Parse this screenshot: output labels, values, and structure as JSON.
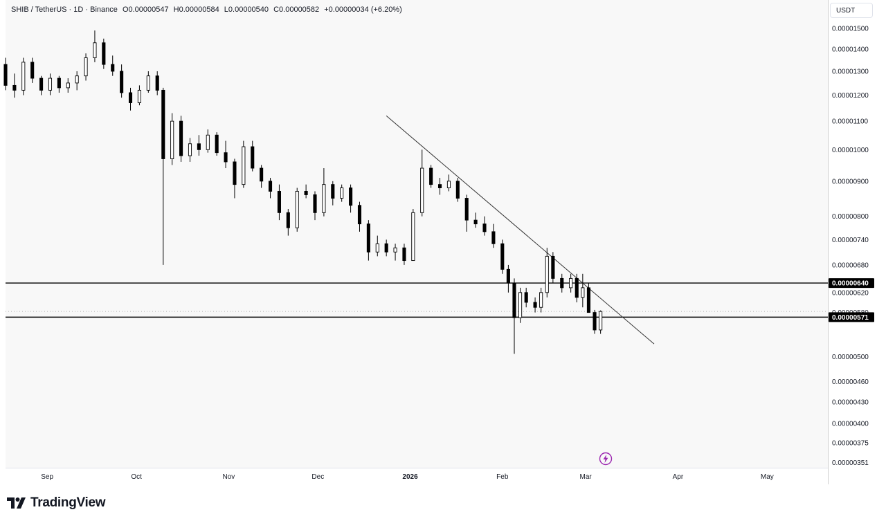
{
  "legend": {
    "symbol": "SHIB / TetherUS · 1D · Binance",
    "open": "O0.00000547",
    "high": "H0.00000584",
    "low": "L0.00000540",
    "close": "C0.00000582",
    "change": "+0.00000034 (+6.20%)"
  },
  "currency": "USDT",
  "brand": "TradingView",
  "colors": {
    "candle": "#000000",
    "line": "#000000",
    "price_label_bg": "#000000",
    "accent": "#9c27b0"
  },
  "icons": {
    "logo": "tradingview-logo-icon",
    "bolt": "lightning-icon"
  },
  "chart_data": {
    "type": "candlestick",
    "log_scale": true,
    "grid": false,
    "y_tick_labels": [
      "0.00001500",
      "0.00001400",
      "0.00001300",
      "0.00001200",
      "0.00001100",
      "0.00001000",
      "0.00000900",
      "0.00000800",
      "0.00000740",
      "0.00000680",
      "0.00000620",
      "0.00000580",
      "0.00000500",
      "0.00000460",
      "0.00000430",
      "0.00000400",
      "0.00000375",
      "0.00000351"
    ],
    "y_ticks": [
      1.5e-05,
      1.4e-05,
      1.3e-05,
      1.2e-05,
      1.1e-05,
      1e-05,
      9e-06,
      8e-06,
      7.4e-06,
      6.8e-06,
      6.2e-06,
      5.8e-06,
      5e-06,
      4.6e-06,
      4.3e-06,
      4e-06,
      3.75e-06,
      3.51e-06
    ],
    "ylim": [
      3.45e-06,
      1.65e-05
    ],
    "x_tick_labels": [
      "Sep",
      "Oct",
      "Nov",
      "Dec",
      "2026",
      "Feb",
      "Mar",
      "Apr",
      "May"
    ],
    "x_ticks": [
      "2025-09-01",
      "2025-10-01",
      "2025-11-01",
      "2025-12-01",
      "2026-01-01",
      "2026-02-01",
      "2026-03-01",
      "2026-04-01",
      "2026-05-01"
    ],
    "x_range": [
      "2025-08-18",
      "2026-05-20"
    ],
    "horizontal_levels": [
      {
        "value": 6.4e-06,
        "label": "0.00000640"
      },
      {
        "value": 5.71e-06,
        "label": "0.00000571"
      }
    ],
    "trendline": {
      "start": [
        "2025-12-24",
        1.12e-05
      ],
      "end": [
        "2026-03-24",
        5.22e-06
      ]
    },
    "dotted_level": 5.82e-06,
    "candles": [
      [
        "2025-08-18",
        1.33e-05,
        1.36e-05,
        1.22e-05,
        1.24e-05
      ],
      [
        "2025-08-21",
        1.24e-05,
        1.29e-05,
        1.19e-05,
        1.22e-05
      ],
      [
        "2025-08-24",
        1.22e-05,
        1.36e-05,
        1.2e-05,
        1.34e-05
      ],
      [
        "2025-08-27",
        1.34e-05,
        1.36e-05,
        1.25e-05,
        1.27e-05
      ],
      [
        "2025-08-30",
        1.27e-05,
        1.28e-05,
        1.2e-05,
        1.22e-05
      ],
      [
        "2025-09-02",
        1.22e-05,
        1.29e-05,
        1.2e-05,
        1.27e-05
      ],
      [
        "2025-09-05",
        1.27e-05,
        1.28e-05,
        1.21e-05,
        1.23e-05
      ],
      [
        "2025-09-08",
        1.23e-05,
        1.27e-05,
        1.21e-05,
        1.25e-05
      ],
      [
        "2025-09-11",
        1.25e-05,
        1.3e-05,
        1.22e-05,
        1.28e-05
      ],
      [
        "2025-09-14",
        1.28e-05,
        1.38e-05,
        1.26e-05,
        1.36e-05
      ],
      [
        "2025-09-17",
        1.36e-05,
        1.49e-05,
        1.34e-05,
        1.43e-05
      ],
      [
        "2025-09-20",
        1.43e-05,
        1.45e-05,
        1.31e-05,
        1.33e-05
      ],
      [
        "2025-09-23",
        1.33e-05,
        1.37e-05,
        1.28e-05,
        1.3e-05
      ],
      [
        "2025-09-26",
        1.3e-05,
        1.33e-05,
        1.19e-05,
        1.21e-05
      ],
      [
        "2025-09-29",
        1.21e-05,
        1.23e-05,
        1.14e-05,
        1.17e-05
      ],
      [
        "2025-10-02",
        1.17e-05,
        1.24e-05,
        1.16e-05,
        1.22e-05
      ],
      [
        "2025-10-05",
        1.22e-05,
        1.3e-05,
        1.21e-05,
        1.28e-05
      ],
      [
        "2025-10-08",
        1.28e-05,
        1.3e-05,
        1.2e-05,
        1.22e-05
      ],
      [
        "2025-10-10",
        1.22e-05,
        1.23e-05,
        6.8e-06,
        9.7e-06
      ],
      [
        "2025-10-13",
        9.7e-06,
        1.13e-05,
        9.5e-06,
        1.1e-05
      ],
      [
        "2025-10-16",
        1.1e-05,
        1.12e-05,
        9.6e-06,
        9.8e-06
      ],
      [
        "2025-10-19",
        9.8e-06,
        1.04e-05,
        9.6e-06,
        1.02e-05
      ],
      [
        "2025-10-22",
        1.02e-05,
        1.05e-05,
        9.8e-06,
        1e-05
      ],
      [
        "2025-10-25",
        1e-05,
        1.07e-05,
        9.9e-06,
        1.05e-05
      ],
      [
        "2025-10-28",
        1.05e-05,
        1.06e-05,
        9.8e-06,
        9.9e-06
      ],
      [
        "2025-10-31",
        9.9e-06,
        1.03e-05,
        9.4e-06,
        9.6e-06
      ],
      [
        "2025-11-03",
        9.6e-06,
        9.7e-06,
        8.5e-06,
        8.9e-06
      ],
      [
        "2025-11-06",
        8.9e-06,
        1.03e-05,
        8.8e-06,
        1.01e-05
      ],
      [
        "2025-11-09",
        1.01e-05,
        1.03e-05,
        9.3e-06,
        9.4e-06
      ],
      [
        "2025-11-12",
        9.4e-06,
        9.5e-06,
        8.8e-06,
        9e-06
      ],
      [
        "2025-11-15",
        9e-06,
        9.1e-06,
        8.5e-06,
        8.7e-06
      ],
      [
        "2025-11-18",
        8.7e-06,
        8.9e-06,
        7.9e-06,
        8.1e-06
      ],
      [
        "2025-11-21",
        8.1e-06,
        8.2e-06,
        7.5e-06,
        7.7e-06
      ],
      [
        "2025-11-24",
        7.7e-06,
        8.8e-06,
        7.6e-06,
        8.7e-06
      ],
      [
        "2025-11-27",
        8.7e-06,
        8.9e-06,
        8.5e-06,
        8.6e-06
      ],
      [
        "2025-11-30",
        8.6e-06,
        8.7e-06,
        7.9e-06,
        8.1e-06
      ],
      [
        "2025-12-03",
        8.1e-06,
        9.4e-06,
        8e-06,
        8.9e-06
      ],
      [
        "2025-12-06",
        8.9e-06,
        9e-06,
        8.3e-06,
        8.5e-06
      ],
      [
        "2025-12-09",
        8.5e-06,
        8.9e-06,
        8.4e-06,
        8.8e-06
      ],
      [
        "2025-12-12",
        8.8e-06,
        8.9e-06,
        8.1e-06,
        8.3e-06
      ],
      [
        "2025-12-15",
        8.3e-06,
        8.4e-06,
        7.6e-06,
        7.8e-06
      ],
      [
        "2025-12-18",
        7.8e-06,
        7.9e-06,
        6.9e-06,
        7.1e-06
      ],
      [
        "2025-12-21",
        7.1e-06,
        7.5e-06,
        7e-06,
        7.3e-06
      ],
      [
        "2025-12-24",
        7.3e-06,
        7.4e-06,
        7e-06,
        7.1e-06
      ],
      [
        "2025-12-27",
        7.1e-06,
        7.3e-06,
        6.9e-06,
        7.2e-06
      ],
      [
        "2025-12-30",
        7.2e-06,
        7.3e-06,
        6.8e-06,
        6.9e-06
      ],
      [
        "2026-01-02",
        6.9e-06,
        8.2e-06,
        6.9e-06,
        8.1e-06
      ],
      [
        "2026-01-05",
        8.1e-06,
        1e-05,
        8e-06,
        9.4e-06
      ],
      [
        "2026-01-08",
        9.4e-06,
        9.5e-06,
        8.8e-06,
        8.9e-06
      ],
      [
        "2026-01-11",
        8.9e-06,
        9.1e-06,
        8.6e-06,
        8.8e-06
      ],
      [
        "2026-01-14",
        8.8e-06,
        9.2e-06,
        8.7e-06,
        9e-06
      ],
      [
        "2026-01-17",
        9e-06,
        9.1e-06,
        8.4e-06,
        8.5e-06
      ],
      [
        "2026-01-20",
        8.5e-06,
        8.6e-06,
        7.6e-06,
        7.9e-06
      ],
      [
        "2026-01-23",
        7.9e-06,
        8.1e-06,
        7.7e-06,
        7.8e-06
      ],
      [
        "2026-01-26",
        7.8e-06,
        8e-06,
        7.5e-06,
        7.6e-06
      ],
      [
        "2026-01-29",
        7.6e-06,
        7.8e-06,
        7.2e-06,
        7.3e-06
      ],
      [
        "2026-02-01",
        7.3e-06,
        7.4e-06,
        6.6e-06,
        6.7e-06
      ],
      [
        "2026-02-03",
        6.7e-06,
        6.8e-06,
        6.2e-06,
        6.4e-06
      ],
      [
        "2026-02-05",
        6.4e-06,
        6.5e-06,
        5.05e-06,
        5.7e-06
      ],
      [
        "2026-02-07",
        5.7e-06,
        6.3e-06,
        5.6e-06,
        6.2e-06
      ],
      [
        "2026-02-09",
        6.2e-06,
        6.3e-06,
        5.9e-06,
        6e-06
      ],
      [
        "2026-02-12",
        6e-06,
        6.1e-06,
        5.8e-06,
        5.9e-06
      ],
      [
        "2026-02-14",
        5.9e-06,
        6.3e-06,
        5.8e-06,
        6.2e-06
      ],
      [
        "2026-02-16",
        6.2e-06,
        7.2e-06,
        6.1e-06,
        7e-06
      ],
      [
        "2026-02-18",
        7e-06,
        7.1e-06,
        6.4e-06,
        6.5e-06
      ],
      [
        "2026-02-21",
        6.5e-06,
        6.6e-06,
        6.2e-06,
        6.3e-06
      ],
      [
        "2026-02-24",
        6.3e-06,
        6.6e-06,
        6.2e-06,
        6.5e-06
      ],
      [
        "2026-02-26",
        6.5e-06,
        6.6e-06,
        6e-06,
        6.1e-06
      ],
      [
        "2026-02-28",
        6.1e-06,
        6.6e-06,
        5.9e-06,
        6.3e-06
      ],
      [
        "2026-03-02",
        6.3e-06,
        6.4e-06,
        5.8e-06,
        5.8e-06
      ],
      [
        "2026-03-04",
        5.8e-06,
        5.85e-06,
        5.4e-06,
        5.47e-06
      ],
      [
        "2026-03-06",
        5.47e-06,
        5.84e-06,
        5.4e-06,
        5.82e-06
      ]
    ]
  }
}
